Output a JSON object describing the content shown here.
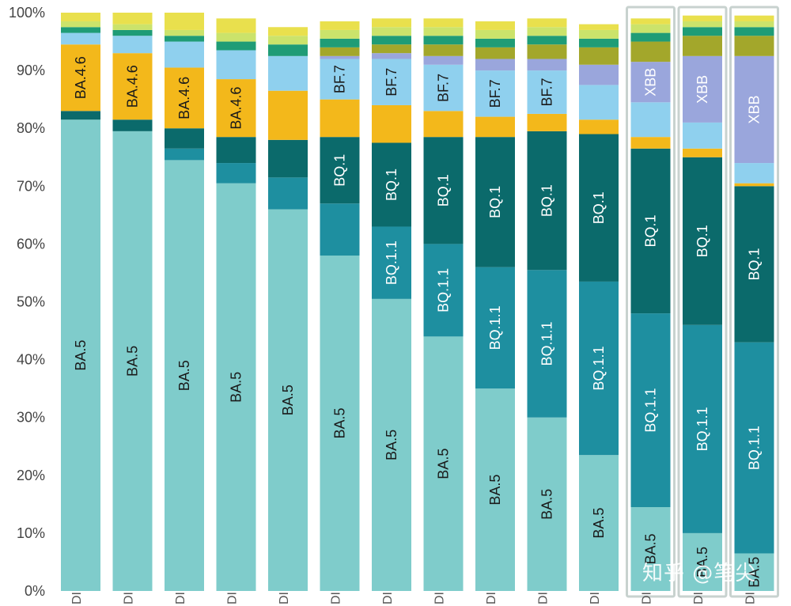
{
  "chart_data": {
    "type": "bar",
    "stacked": true,
    "percent": true,
    "ylim": [
      0,
      100
    ],
    "yticks": [
      "0%",
      "10%",
      "20%",
      "30%",
      "40%",
      "50%",
      "60%",
      "70%",
      "80%",
      "90%",
      "100%"
    ],
    "categories": [
      "DI",
      "DI",
      "DI",
      "DI",
      "DI",
      "DI",
      "DI",
      "DI",
      "DI",
      "DI",
      "DI",
      "DI",
      "DI",
      "DI"
    ],
    "highlighted_bars": [
      11,
      12,
      13
    ],
    "series": [
      {
        "name": "BA.5",
        "label": "BA.5",
        "color": "#7fcccb",
        "values": [
          81.5,
          79.5,
          74.5,
          70.5,
          66,
          58,
          50.5,
          44,
          35,
          30,
          23.5,
          14.5,
          10,
          6.5
        ],
        "show_label": [
          true,
          true,
          true,
          true,
          true,
          true,
          true,
          true,
          true,
          true,
          true,
          true,
          true,
          true
        ]
      },
      {
        "name": "BQ.1.1",
        "label": "BQ.1.1",
        "color": "#1e8fa0",
        "values": [
          0,
          0,
          2,
          3.5,
          5.5,
          9,
          12.5,
          16,
          21,
          25.5,
          30,
          33.5,
          36,
          36.5
        ],
        "show_label": [
          false,
          false,
          false,
          false,
          false,
          false,
          true,
          true,
          true,
          true,
          true,
          true,
          true,
          true
        ]
      },
      {
        "name": "BQ.1",
        "label": "BQ.1",
        "color": "#0b6a6b",
        "values": [
          1.5,
          2,
          3.5,
          4.5,
          6.5,
          11.5,
          14.5,
          18.5,
          22.5,
          24,
          25.5,
          28.5,
          29,
          27
        ],
        "show_label": [
          false,
          false,
          false,
          false,
          false,
          true,
          true,
          true,
          true,
          true,
          true,
          true,
          true,
          true
        ]
      },
      {
        "name": "BA.4.6",
        "label": "BA.4.6",
        "color": "#f3b81b",
        "values": [
          11.5,
          11.5,
          10.5,
          10,
          8.5,
          6.5,
          6.5,
          4.5,
          3.5,
          3,
          2.5,
          2,
          1.5,
          0.5
        ],
        "show_label": [
          true,
          true,
          true,
          true,
          false,
          false,
          false,
          false,
          false,
          false,
          false,
          false,
          false,
          false
        ]
      },
      {
        "name": "BF.7",
        "label": "BF.7",
        "color": "#8fd0ee",
        "values": [
          2,
          3,
          4.5,
          5,
          6,
          7,
          8,
          8,
          8,
          7.5,
          6,
          6,
          4.5,
          3.5
        ],
        "show_label": [
          false,
          false,
          false,
          false,
          false,
          true,
          true,
          true,
          true,
          true,
          false,
          false,
          false,
          false
        ]
      },
      {
        "name": "XBB",
        "label": "XBB",
        "color": "#9aa6dc",
        "values": [
          0,
          0,
          0,
          0,
          0,
          0.5,
          1,
          1.5,
          2,
          2,
          3.5,
          7,
          11.5,
          18.5
        ],
        "show_label": [
          false,
          false,
          false,
          false,
          false,
          false,
          false,
          false,
          false,
          false,
          false,
          true,
          true,
          true
        ]
      },
      {
        "name": "",
        "label": "",
        "color": "#a3a72b",
        "values": [
          0,
          0,
          0,
          0,
          0,
          1.5,
          1.5,
          2,
          2,
          2.5,
          3,
          3.5,
          3.5,
          3.5
        ],
        "show_label": [
          false,
          false,
          false,
          false,
          false,
          false,
          false,
          false,
          false,
          false,
          false,
          false,
          false,
          false
        ]
      },
      {
        "name": "",
        "label": "",
        "color": "#1f9c76",
        "values": [
          1,
          1,
          1,
          1.5,
          2,
          1.5,
          1.5,
          1.5,
          1.5,
          1.5,
          1.5,
          1.5,
          1.5,
          1.5
        ],
        "show_label": [
          false,
          false,
          false,
          false,
          false,
          false,
          false,
          false,
          false,
          false,
          false,
          false,
          false,
          false
        ]
      },
      {
        "name": "",
        "label": "",
        "color": "#cbe36b",
        "values": [
          1,
          1,
          1,
          1.5,
          1.5,
          1.5,
          1.5,
          1.5,
          1.5,
          1.5,
          1.5,
          1.5,
          1,
          1
        ],
        "show_label": [
          false,
          false,
          false,
          false,
          false,
          false,
          false,
          false,
          false,
          false,
          false,
          false,
          false,
          false
        ]
      },
      {
        "name": "",
        "label": "",
        "color": "#e9e04d",
        "values": [
          1.5,
          2,
          3,
          2.5,
          1.5,
          1.5,
          1.5,
          1.5,
          1.5,
          1.5,
          1,
          1,
          1,
          1
        ],
        "show_label": [
          false,
          false,
          false,
          false,
          false,
          false,
          false,
          false,
          false,
          false,
          false,
          false,
          false,
          false
        ]
      }
    ]
  },
  "watermark": "知乎 @笔尖",
  "colors": {
    "label_dark": "#1a1a1a",
    "label_light": "#ffffff",
    "highlight_frame": "#c8d2cf"
  }
}
